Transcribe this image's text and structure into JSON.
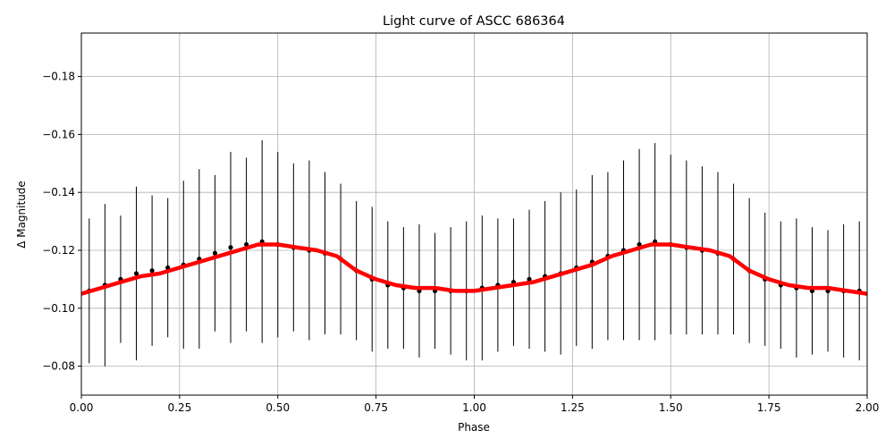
{
  "chart_data": {
    "type": "scatter",
    "title": "Light curve of ASCC 686364",
    "xlabel": "Phase",
    "ylabel": "Δ Magnitude",
    "xlim": [
      0,
      2
    ],
    "ylim": [
      -0.07,
      -0.195
    ],
    "y_inverted": true,
    "grid": true,
    "x_ticks": [
      {
        "value": 0.0,
        "label": "0.00"
      },
      {
        "value": 0.25,
        "label": "0.25"
      },
      {
        "value": 0.5,
        "label": "0.50"
      },
      {
        "value": 0.75,
        "label": "0.75"
      },
      {
        "value": 1.0,
        "label": "1.00"
      },
      {
        "value": 1.25,
        "label": "1.25"
      },
      {
        "value": 1.5,
        "label": "1.50"
      },
      {
        "value": 1.75,
        "label": "1.75"
      },
      {
        "value": 2.0,
        "label": "2.00"
      }
    ],
    "y_ticks": [
      {
        "value": -0.08,
        "label": "−0.08"
      },
      {
        "value": -0.1,
        "label": "−0.10"
      },
      {
        "value": -0.12,
        "label": "−0.12"
      },
      {
        "value": -0.14,
        "label": "−0.14"
      },
      {
        "value": -0.16,
        "label": "−0.16"
      },
      {
        "value": -0.18,
        "label": "−0.18"
      }
    ],
    "series": [
      {
        "kind": "points_with_errorbars",
        "color": "#000000",
        "x": [
          0.02,
          0.06,
          0.1,
          0.14,
          0.18,
          0.22,
          0.26,
          0.3,
          0.34,
          0.38,
          0.42,
          0.46,
          0.5,
          0.54,
          0.58,
          0.62,
          0.66,
          0.7,
          0.74,
          0.78,
          0.82,
          0.86,
          0.9,
          0.94,
          0.98,
          1.02,
          1.06,
          1.1,
          1.14,
          1.18,
          1.22,
          1.26,
          1.3,
          1.34,
          1.38,
          1.42,
          1.46,
          1.5,
          1.54,
          1.58,
          1.62,
          1.66,
          1.7,
          1.74,
          1.78,
          1.82,
          1.86,
          1.9,
          1.94,
          1.98
        ],
        "y": [
          -0.106,
          -0.108,
          -0.11,
          -0.112,
          -0.113,
          -0.114,
          -0.115,
          -0.117,
          -0.119,
          -0.121,
          -0.122,
          -0.123,
          -0.122,
          -0.121,
          -0.12,
          -0.119,
          -0.117,
          -0.113,
          -0.11,
          -0.108,
          -0.107,
          -0.106,
          -0.106,
          -0.106,
          -0.106,
          -0.107,
          -0.108,
          -0.109,
          -0.11,
          -0.111,
          -0.112,
          -0.114,
          -0.116,
          -0.118,
          -0.12,
          -0.122,
          -0.123,
          -0.122,
          -0.121,
          -0.12,
          -0.119,
          -0.117,
          -0.113,
          -0.11,
          -0.108,
          -0.107,
          -0.106,
          -0.106,
          -0.106,
          -0.106
        ],
        "yerr": [
          0.025,
          0.028,
          0.022,
          0.03,
          0.026,
          0.024,
          0.029,
          0.031,
          0.027,
          0.033,
          0.03,
          0.035,
          0.032,
          0.029,
          0.031,
          0.028,
          0.026,
          0.024,
          0.025,
          0.022,
          0.021,
          0.023,
          0.02,
          0.022,
          0.024,
          0.025,
          0.023,
          0.022,
          0.024,
          0.026,
          0.028,
          0.027,
          0.03,
          0.029,
          0.031,
          0.033,
          0.034,
          0.031,
          0.03,
          0.029,
          0.028,
          0.026,
          0.025,
          0.023,
          0.022,
          0.024,
          0.022,
          0.021,
          0.023,
          0.024
        ]
      },
      {
        "kind": "model_line",
        "color": "#ff0000",
        "x": [
          0.0,
          0.05,
          0.1,
          0.15,
          0.2,
          0.25,
          0.3,
          0.35,
          0.4,
          0.45,
          0.5,
          0.55,
          0.6,
          0.65,
          0.7,
          0.75,
          0.8,
          0.85,
          0.9,
          0.95,
          1.0,
          1.05,
          1.1,
          1.15,
          1.2,
          1.25,
          1.3,
          1.35,
          1.4,
          1.45,
          1.5,
          1.55,
          1.6,
          1.65,
          1.7,
          1.75,
          1.8,
          1.85,
          1.9,
          1.95,
          2.0
        ],
        "y": [
          -0.105,
          -0.107,
          -0.109,
          -0.111,
          -0.112,
          -0.114,
          -0.116,
          -0.118,
          -0.12,
          -0.122,
          -0.122,
          -0.121,
          -0.12,
          -0.118,
          -0.113,
          -0.11,
          -0.108,
          -0.107,
          -0.107,
          -0.106,
          -0.106,
          -0.107,
          -0.108,
          -0.109,
          -0.111,
          -0.113,
          -0.115,
          -0.118,
          -0.12,
          -0.122,
          -0.122,
          -0.121,
          -0.12,
          -0.118,
          -0.113,
          -0.11,
          -0.108,
          -0.107,
          -0.107,
          -0.106,
          -0.105
        ]
      }
    ]
  }
}
